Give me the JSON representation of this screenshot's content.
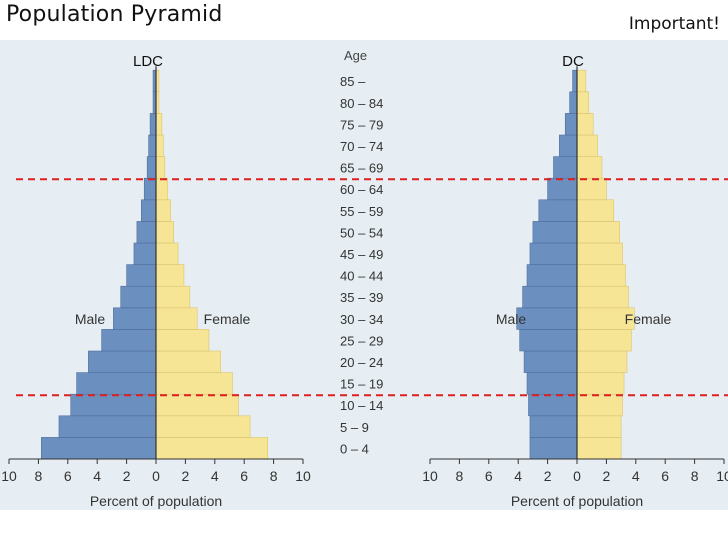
{
  "slide": {
    "title": "Population Pyramid",
    "note": "Important!"
  },
  "chart_data": [
    {
      "type": "bar",
      "orientation": "horizontal-pyramid",
      "title": "LDC",
      "categories": [
        "0 – 4",
        "5 – 9",
        "10 – 14",
        "15 – 19",
        "20 – 24",
        "25 – 29",
        "30 – 34",
        "35 – 39",
        "40 – 44",
        "45 – 49",
        "50 – 54",
        "55 – 59",
        "60 – 64",
        "65 – 69",
        "70 – 74",
        "75 – 79",
        "80 – 84",
        "85 –"
      ],
      "ylabel": "Age",
      "xlabel": "Percent of population",
      "xlim": [
        -10,
        10
      ],
      "xticks": [
        "10",
        "8",
        "6",
        "4",
        "2",
        "0",
        "2",
        "4",
        "6",
        "8",
        "10"
      ],
      "series": [
        {
          "name": "Male",
          "color": "#6b8fbf",
          "values": [
            7.8,
            6.6,
            5.8,
            5.4,
            4.6,
            3.7,
            2.9,
            2.4,
            2.0,
            1.5,
            1.3,
            1.0,
            0.8,
            0.6,
            0.5,
            0.4,
            0.2,
            0.2
          ]
        },
        {
          "name": "Female",
          "color": "#f7e596",
          "values": [
            7.6,
            6.4,
            5.6,
            5.2,
            4.4,
            3.6,
            2.8,
            2.3,
            1.9,
            1.5,
            1.2,
            1.0,
            0.8,
            0.6,
            0.5,
            0.4,
            0.2,
            0.2
          ]
        }
      ]
    },
    {
      "type": "bar",
      "orientation": "horizontal-pyramid",
      "title": "DC",
      "categories": [
        "0 – 4",
        "5 – 9",
        "10 – 14",
        "15 – 19",
        "20 – 24",
        "25 – 29",
        "30 – 34",
        "35 – 39",
        "40 – 44",
        "45 – 49",
        "50 – 54",
        "55 – 59",
        "60 – 64",
        "65 – 69",
        "70 – 74",
        "75 – 79",
        "80 – 84",
        "85 –"
      ],
      "xlabel": "Percent of population",
      "xlim": [
        -10,
        10
      ],
      "xticks": [
        "10",
        "8",
        "6",
        "4",
        "2",
        "0",
        "2",
        "4",
        "6",
        "8",
        "10"
      ],
      "series": [
        {
          "name": "Male",
          "color": "#6b8fbf",
          "values": [
            3.2,
            3.2,
            3.3,
            3.4,
            3.6,
            3.9,
            4.1,
            3.7,
            3.4,
            3.2,
            3.0,
            2.6,
            2.0,
            1.6,
            1.2,
            0.8,
            0.5,
            0.3
          ]
        },
        {
          "name": "Female",
          "color": "#f7e596",
          "values": [
            3.0,
            3.0,
            3.1,
            3.2,
            3.4,
            3.7,
            3.9,
            3.5,
            3.3,
            3.1,
            2.9,
            2.5,
            2.0,
            1.7,
            1.4,
            1.1,
            0.8,
            0.6
          ]
        }
      ]
    }
  ],
  "annotations": {
    "line_color": "#e02020",
    "lines": [
      {
        "at_category": "60 – 64",
        "style": "dashed"
      },
      {
        "at_category": "10 – 14",
        "style": "dashed"
      }
    ]
  }
}
